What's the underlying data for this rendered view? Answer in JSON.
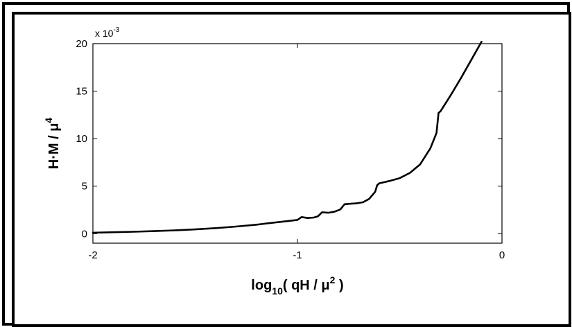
{
  "chart_data": {
    "type": "line",
    "title": "",
    "xlabel": {
      "main": "log",
      "sub": "10",
      "mid": "( qH / μ",
      "sup": "2",
      "end": " )"
    },
    "ylabel": {
      "main": "H·M / μ",
      "sup": "4"
    },
    "y_exponent": {
      "base": "x 10",
      "power": "-3"
    },
    "xlim": [
      -2,
      0
    ],
    "ylim": [
      -1,
      20
    ],
    "x_ticks": [
      {
        "value": -2,
        "label": "-2"
      },
      {
        "value": -1,
        "label": "-1"
      },
      {
        "value": 0,
        "label": "0"
      }
    ],
    "y_ticks": [
      {
        "value": 0,
        "label": "0"
      },
      {
        "value": 5,
        "label": "5"
      },
      {
        "value": 10,
        "label": "10"
      },
      {
        "value": 15,
        "label": "15"
      },
      {
        "value": 20,
        "label": "20"
      }
    ],
    "grid": false,
    "line_color": "#000000",
    "series": [
      {
        "x": [
          -2.0,
          -1.9,
          -1.8,
          -1.7,
          -1.6,
          -1.5,
          -1.4,
          -1.3,
          -1.2,
          -1.1,
          -1.05,
          -1.0,
          -0.98,
          -0.95,
          -0.92,
          -0.9,
          -0.88,
          -0.85,
          -0.82,
          -0.79,
          -0.77,
          -0.74,
          -0.71,
          -0.68,
          -0.65,
          -0.62,
          -0.61,
          -0.6,
          -0.55,
          -0.5,
          -0.45,
          -0.4,
          -0.35,
          -0.32,
          -0.31,
          -0.3,
          -0.25,
          -0.2,
          -0.15,
          -0.1
        ],
        "y": [
          0.1,
          0.15,
          0.2,
          0.27,
          0.35,
          0.45,
          0.58,
          0.75,
          0.95,
          1.2,
          1.32,
          1.45,
          1.75,
          1.65,
          1.7,
          1.82,
          2.25,
          2.2,
          2.3,
          2.55,
          3.1,
          3.15,
          3.2,
          3.3,
          3.65,
          4.4,
          5.1,
          5.3,
          5.55,
          5.85,
          6.4,
          7.3,
          9.0,
          10.6,
          12.7,
          12.9,
          14.6,
          16.4,
          18.3,
          20.2
        ]
      }
    ]
  }
}
